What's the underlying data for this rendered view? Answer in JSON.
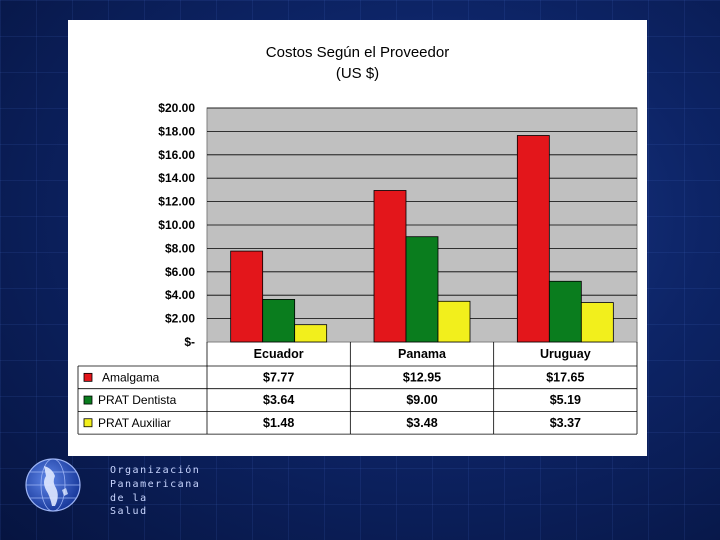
{
  "chart_data": {
    "type": "bar",
    "title": "Costos Según el Proveedor",
    "subtitle": "(US $)",
    "categories": [
      "Ecuador",
      "Panama",
      "Uruguay"
    ],
    "series": [
      {
        "name": "Amalgama",
        "values": [
          7.77,
          12.95,
          17.65
        ],
        "labels": [
          "$7.77",
          "$12.95",
          "$17.65"
        ],
        "color": "#e3161b"
      },
      {
        "name": "PRAT Dentista",
        "values": [
          3.64,
          9.0,
          5.19
        ],
        "labels": [
          "$3.64",
          "$9.00",
          "$5.19"
        ],
        "color": "#0a7d1e"
      },
      {
        "name": "PRAT Auxiliar",
        "values": [
          1.48,
          3.48,
          3.37
        ],
        "labels": [
          "$1.48",
          "$3.48",
          "$3.37"
        ],
        "color": "#f2ef1c"
      }
    ],
    "yticks": [
      {
        "value": 0,
        "label": "$-"
      },
      {
        "value": 2,
        "label": "$2.00"
      },
      {
        "value": 4,
        "label": "$4.00"
      },
      {
        "value": 6,
        "label": "$6.00"
      },
      {
        "value": 8,
        "label": "$8.00"
      },
      {
        "value": 10,
        "label": "$10.00"
      },
      {
        "value": 12,
        "label": "$12.00"
      },
      {
        "value": 14,
        "label": "$14.00"
      },
      {
        "value": 16,
        "label": "$16.00"
      },
      {
        "value": 18,
        "label": "$18.00"
      },
      {
        "value": 20,
        "label": "$20.00"
      }
    ],
    "ylim": [
      0,
      20
    ],
    "grid": true,
    "legend": "data-table-left",
    "plot_bg": "#c0c0c0"
  },
  "logo": {
    "line1": "Organización",
    "line2": "Panamericana",
    "line3": "de la Salud"
  },
  "colors": {
    "background": "#0d2466",
    "panel": "#ffffff"
  }
}
